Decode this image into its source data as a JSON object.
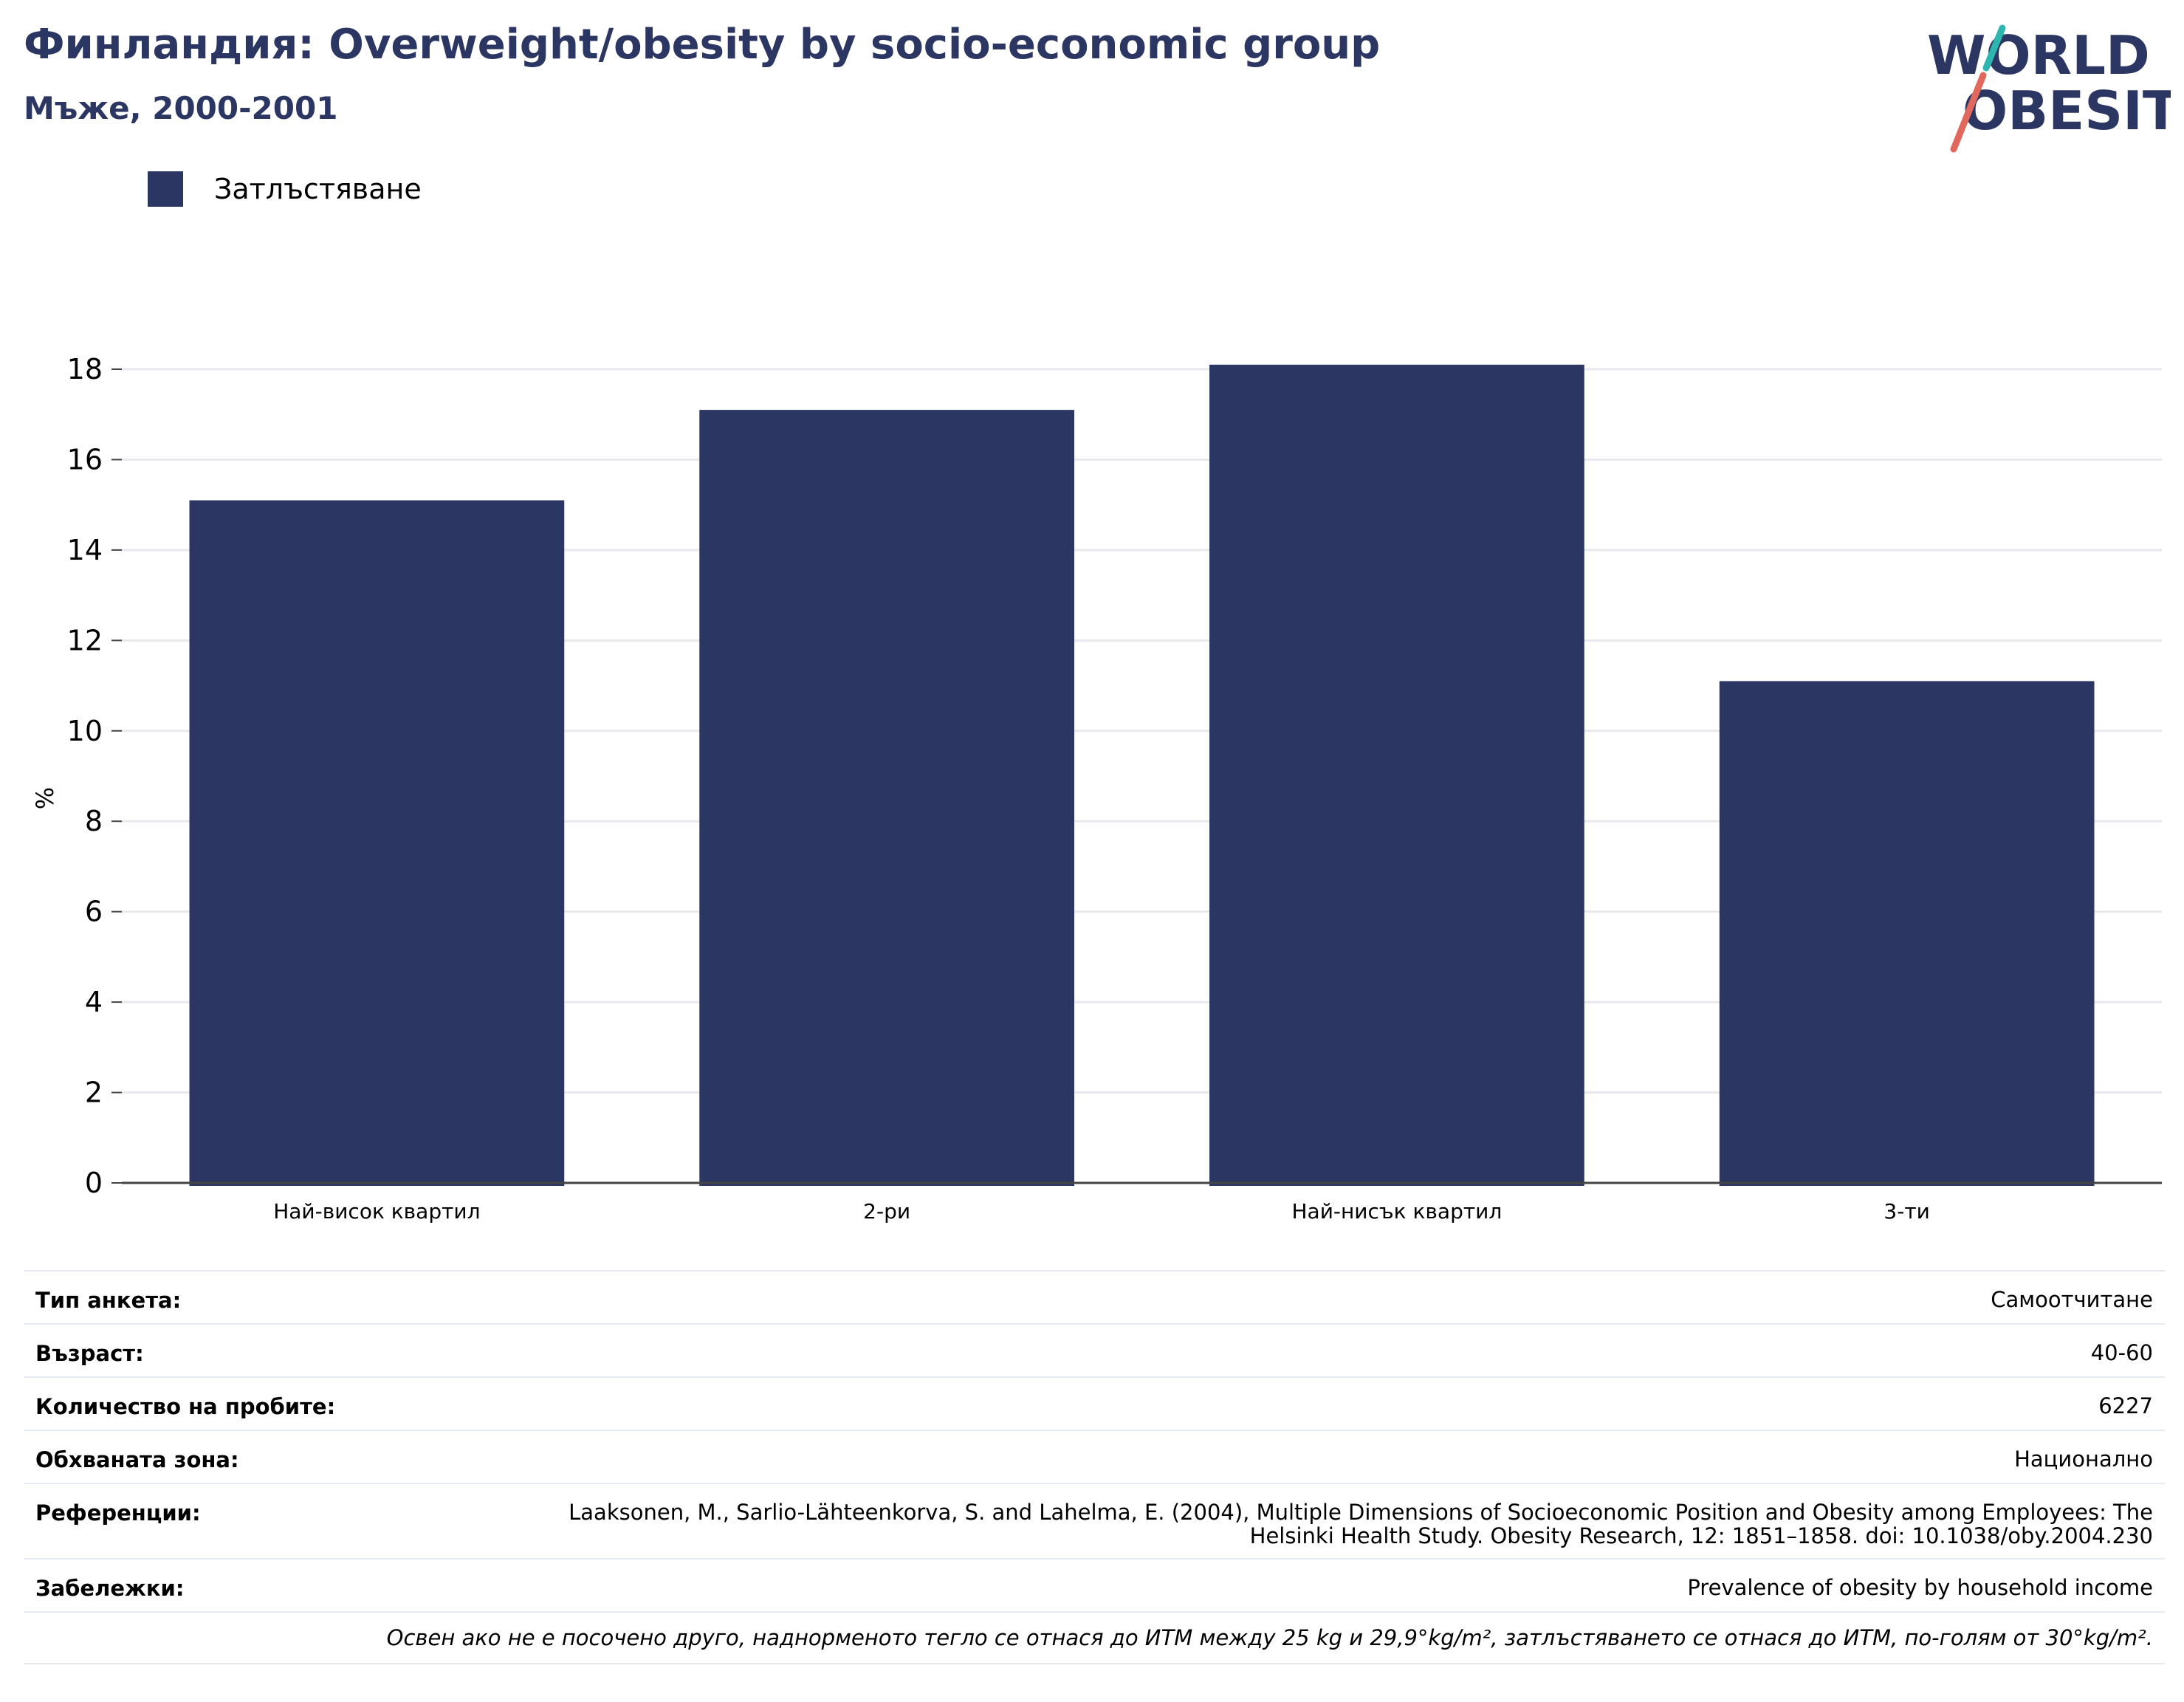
{
  "header": {
    "title": "Финландия: Overweight/obesity by socio-economic group",
    "subtitle": "Мъже, 2000-2001"
  },
  "logo": {
    "line1": "WORLD",
    "line2": "OBESITY"
  },
  "legend": {
    "label": "Затлъстяване",
    "color": "#2b3663"
  },
  "chart_data": {
    "type": "bar",
    "categories": [
      "Най-висок квартил",
      "2-ри",
      "Най-нисък квартил",
      "3-ти"
    ],
    "series": [
      {
        "name": "Затлъстяване",
        "values": [
          15.1,
          17.1,
          18.1,
          11.1
        ]
      }
    ],
    "ylabel": "%",
    "ylim": [
      0,
      18
    ],
    "yticks": [
      0,
      2,
      4,
      6,
      8,
      10,
      12,
      14,
      16,
      18
    ],
    "grid": true,
    "legend_position": "top-left"
  },
  "info": {
    "survey_type": {
      "label": "Тип анкета:",
      "value": "Самоотчитане"
    },
    "age": {
      "label": "Възраст:",
      "value": "40-60"
    },
    "sample_size": {
      "label": "Количество на пробите:",
      "value": "6227"
    },
    "area": {
      "label": "Обхваната зона:",
      "value": "Национално"
    },
    "references": {
      "label": "Референции:",
      "value": "Laaksonen, M., Sarlio-Lähteenkorva, S. and Lahelma, E. (2004), Multiple Dimensions of Socioeconomic Position and Obesity among Employees: The Helsinki Health Study. Obesity Research, 12: 1851–1858. doi: 10.1038/oby.2004.230"
    },
    "notes": {
      "label": "Забележки:",
      "value": "Prevalence of obesity by household income"
    },
    "footnote": "Освен ако не е посочено друго, наднорменото тегло се отнася до ИТМ между 25 kg и 29,9°kg/m², затлъстяването се отнася до ИТМ, по-голям от 30°kg/m²."
  }
}
